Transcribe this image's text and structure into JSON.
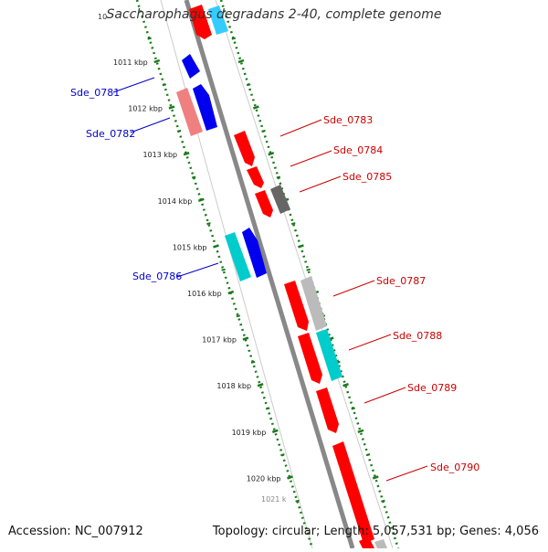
{
  "title": "Saccharophagus degradans 2-40, complete genome",
  "footer": {
    "accession": "Accession: NC_007912",
    "summary": "Topology: circular; Length: 5,057,531 bp; Genes: 4,056"
  },
  "colors": {
    "backbone": "#888888",
    "ruler": "#1a7a1a",
    "forward_label": "#0000cc",
    "reverse_label": "#cc0000",
    "red": "#ff0000",
    "pink": "#f08080",
    "blue": "#0000ee",
    "cyan": "#00cccc",
    "gray": "#666666",
    "lightgray": "#bbbbbb",
    "skyblue": "#33ccff"
  },
  "ruler_labels": [
    "1011 kbp",
    "1012 kbp",
    "1013 kbp",
    "1014 kbp",
    "1015 kbp",
    "1016 kbp",
    "1017 kbp",
    "1018 kbp",
    "1019 kbp",
    "1020 kbp"
  ],
  "gene_labels": [
    {
      "text": "Sde_0781",
      "strand": "forward"
    },
    {
      "text": "Sde_0782",
      "strand": "forward"
    },
    {
      "text": "Sde_0783",
      "strand": "reverse"
    },
    {
      "text": "Sde_0784",
      "strand": "reverse"
    },
    {
      "text": "Sde_0785",
      "strand": "reverse"
    },
    {
      "text": "Sde_0786",
      "strand": "forward"
    },
    {
      "text": "Sde_0787",
      "strand": "reverse"
    },
    {
      "text": "Sde_0788",
      "strand": "reverse"
    },
    {
      "text": "Sde_0789",
      "strand": "reverse"
    },
    {
      "text": "Sde_0790",
      "strand": "reverse"
    }
  ]
}
